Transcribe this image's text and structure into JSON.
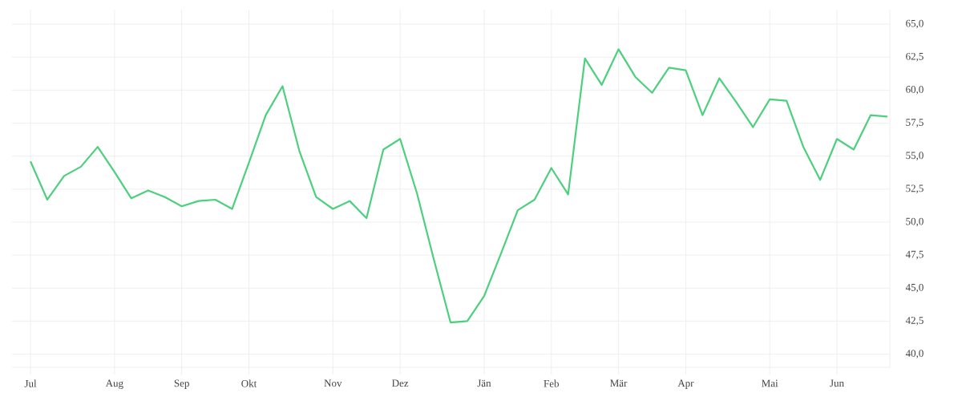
{
  "chart_data": {
    "type": "line",
    "categories": [
      "Jul",
      null,
      null,
      null,
      null,
      "Aug",
      null,
      null,
      null,
      "Sep",
      null,
      null,
      null,
      "Okt",
      null,
      null,
      null,
      null,
      "Nov",
      null,
      null,
      null,
      "Dez",
      null,
      null,
      null,
      null,
      "Jän",
      null,
      null,
      null,
      "Feb",
      null,
      null,
      null,
      "Mär",
      null,
      null,
      null,
      "Apr",
      null,
      null,
      null,
      null,
      "Mai",
      null,
      null,
      null,
      "Jun",
      null,
      null,
      null
    ],
    "series": [
      {
        "color": "#4cd07d",
        "values": [
          54.6,
          51.7,
          53.5,
          54.2,
          55.7,
          53.8,
          51.8,
          52.4,
          51.9,
          51.2,
          51.6,
          51.7,
          51.0,
          54.5,
          58.1,
          60.3,
          55.4,
          51.9,
          51.0,
          51.6,
          50.3,
          55.5,
          56.3,
          52.2,
          47.2,
          42.4,
          42.5,
          44.4,
          47.6,
          50.9,
          51.7,
          54.1,
          52.1,
          62.4,
          60.4,
          63.1,
          61.0,
          59.8,
          61.7,
          61.5,
          58.1,
          60.9,
          59.1,
          57.2,
          59.3,
          59.2,
          55.7,
          53.2,
          56.3,
          55.5,
          58.1,
          58.0
        ]
      }
    ],
    "ylim": [
      39.0,
      66.1
    ],
    "yticks": [
      {
        "value": 40,
        "label": "40,0"
      },
      {
        "value": 42.5,
        "label": "42,5"
      },
      {
        "value": 45,
        "label": "45,0"
      },
      {
        "value": 47.5,
        "label": "47,5"
      },
      {
        "value": 50,
        "label": "50,0"
      },
      {
        "value": 52.5,
        "label": "52,5"
      },
      {
        "value": 55,
        "label": "55,0"
      },
      {
        "value": 57.5,
        "label": "57,5"
      },
      {
        "value": 60,
        "label": "60,0"
      },
      {
        "value": 62.5,
        "label": "62,5"
      },
      {
        "value": 65,
        "label": "65,0"
      }
    ],
    "grid": true
  }
}
